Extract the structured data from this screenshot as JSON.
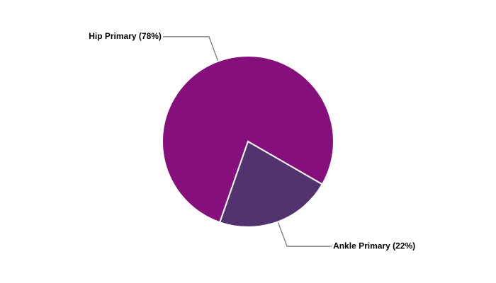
{
  "chart_data": {
    "type": "pie",
    "values": [
      78,
      22
    ],
    "value_labels": [
      "Hip Primary (78%)",
      "Ankle Primary (22%)"
    ],
    "colors": [
      "#850f7b",
      "#52336f"
    ]
  }
}
